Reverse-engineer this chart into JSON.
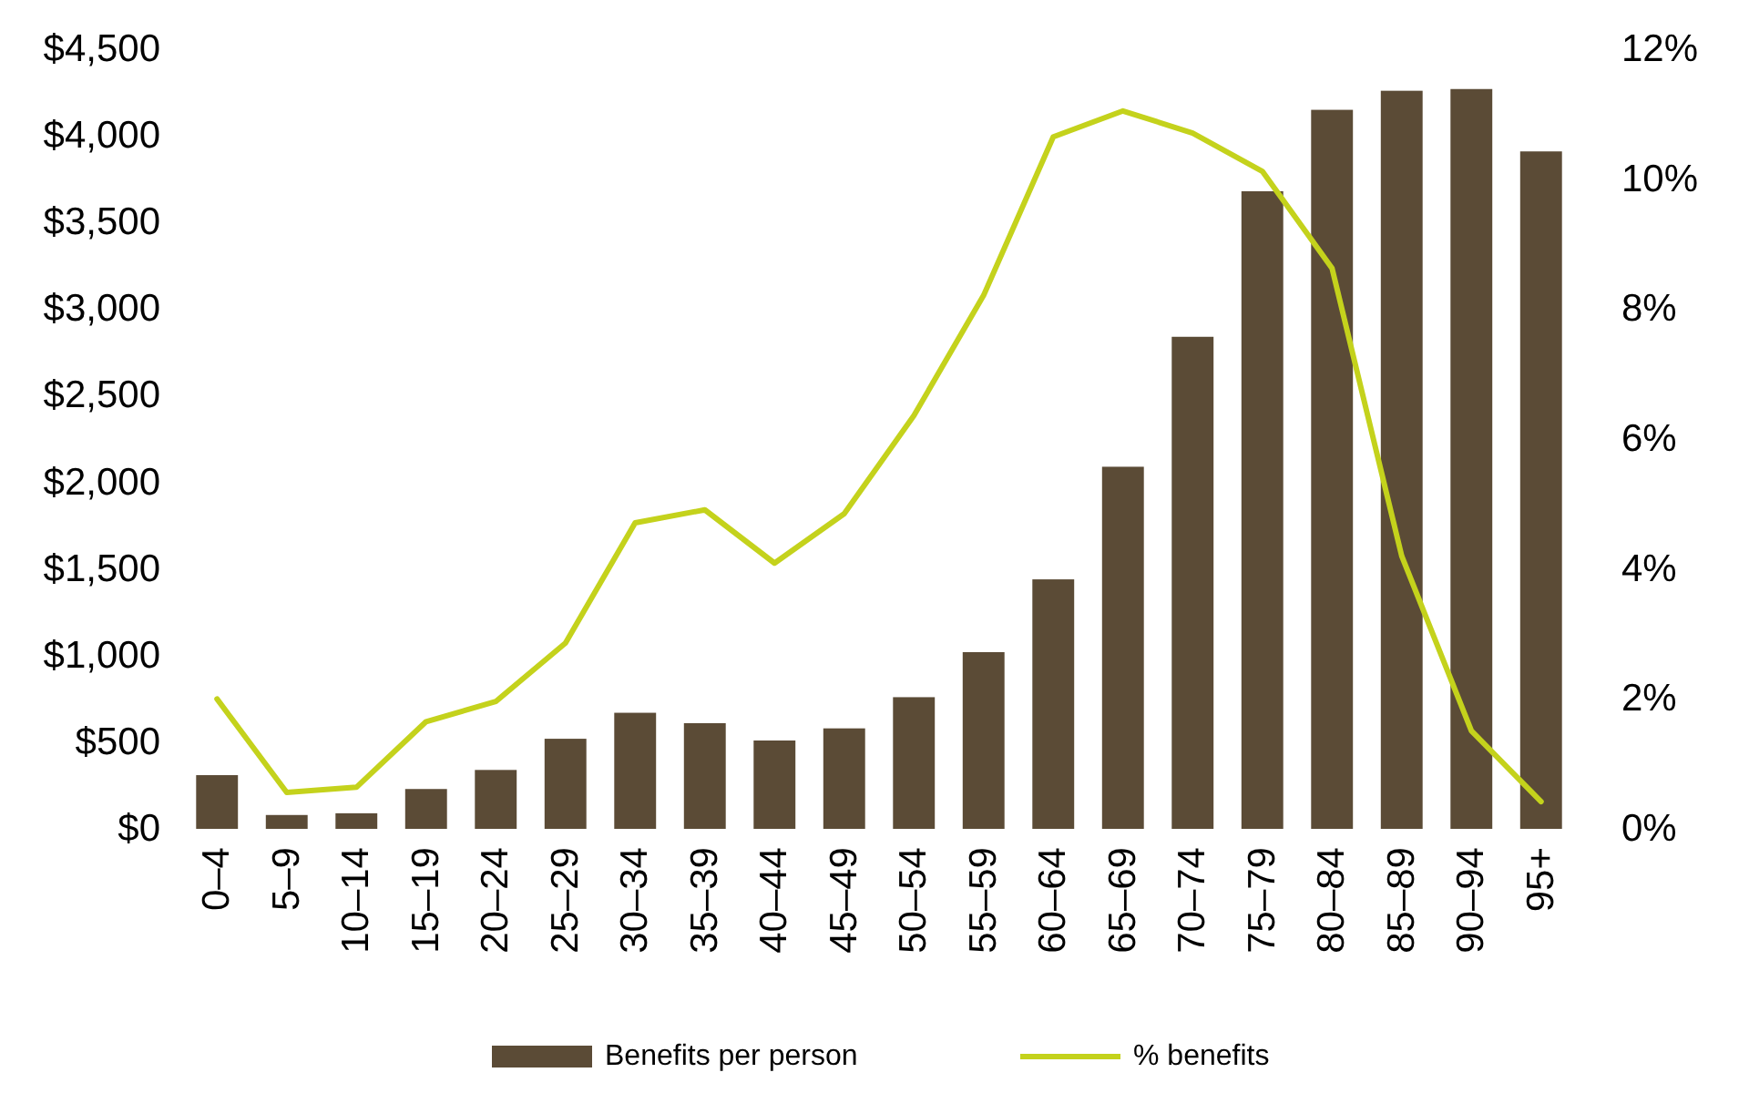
{
  "chart_data": {
    "type": "bar",
    "categories": [
      "0–4",
      "5–9",
      "10–14",
      "15–19",
      "20–24",
      "25–29",
      "30–34",
      "35–39",
      "40–44",
      "45–49",
      "50–54",
      "55–59",
      "60–64",
      "65–69",
      "70–74",
      "75–79",
      "80–84",
      "85–89",
      "90–94",
      "95+"
    ],
    "series": [
      {
        "name": "Benefits per person",
        "color": "#5b4b36",
        "values": [
          310,
          80,
          90,
          230,
          340,
          520,
          670,
          610,
          510,
          580,
          760,
          1020,
          1440,
          2090,
          2840,
          3680,
          4150,
          4260,
          4270,
          3910
        ]
      },
      {
        "name": "% benefits",
        "type": "line",
        "axis": "y2",
        "color": "#c4d21c",
        "values": [
          2.0,
          0.56,
          0.64,
          1.65,
          1.96,
          2.86,
          4.71,
          4.91,
          4.09,
          4.85,
          6.36,
          8.21,
          10.65,
          11.05,
          10.71,
          10.12,
          8.63,
          4.2,
          1.51,
          0.42
        ]
      }
    ],
    "ylim": [
      0,
      4500
    ],
    "yticks": [
      {
        "value": 0,
        "label": "$0"
      },
      {
        "value": 500,
        "label": "$500"
      },
      {
        "value": 1000,
        "label": "$1,000"
      },
      {
        "value": 1500,
        "label": "$1,500"
      },
      {
        "value": 2000,
        "label": "$2,000"
      },
      {
        "value": 2500,
        "label": "$2,500"
      },
      {
        "value": 3000,
        "label": "$3,000"
      },
      {
        "value": 3500,
        "label": "$3,500"
      },
      {
        "value": 4000,
        "label": "$4,000"
      },
      {
        "value": 4500,
        "label": "$4,500"
      }
    ],
    "y2lim": [
      0,
      12
    ],
    "y2ticks": [
      {
        "value": 0,
        "label": "0%"
      },
      {
        "value": 2,
        "label": "2%"
      },
      {
        "value": 4,
        "label": "4%"
      },
      {
        "value": 6,
        "label": "6%"
      },
      {
        "value": 8,
        "label": "8%"
      },
      {
        "value": 10,
        "label": "10%"
      },
      {
        "value": 12,
        "label": "12%"
      }
    ],
    "grid": false,
    "legend": "bottom",
    "marker": "none",
    "line_style": "solid"
  }
}
